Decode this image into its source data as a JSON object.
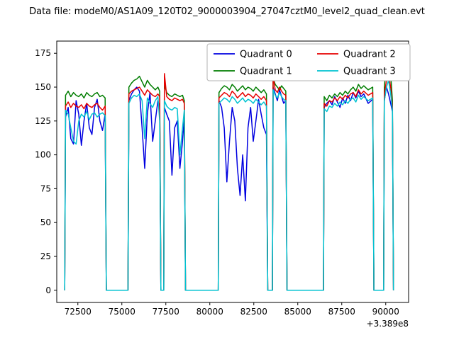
{
  "chart_data": {
    "type": "line",
    "title": "Data file: modeM0/AS1A09_120T02_9000003904_27047cztM0_level2_quad_clean.evt",
    "x_offset_label": "+3.389e8",
    "xlabel": "",
    "ylabel": "",
    "grid": false,
    "xlim": [
      71300,
      91300
    ],
    "ylim": [
      -9,
      184
    ],
    "xticks": [
      72500,
      75000,
      77500,
      80000,
      82500,
      85000,
      87500,
      90000
    ],
    "yticks": [
      0,
      25,
      50,
      75,
      100,
      125,
      150,
      175
    ],
    "legend": {
      "ncols": 2,
      "location": "upper center"
    },
    "x": [
      71750,
      71800,
      71950,
      72100,
      72250,
      72400,
      72550,
      72700,
      72850,
      73000,
      73150,
      73300,
      73450,
      73600,
      73750,
      73900,
      74050,
      74120,
      75350,
      75400,
      75550,
      75700,
      75850,
      76000,
      76150,
      76300,
      76450,
      76600,
      76750,
      76900,
      77050,
      77150,
      77220,
      77380,
      77420,
      77550,
      77700,
      77850,
      78000,
      78150,
      78300,
      78450,
      78550,
      78620,
      80480,
      80520,
      80670,
      80820,
      80970,
      81120,
      81270,
      81420,
      81570,
      81720,
      81870,
      82020,
      82170,
      82320,
      82470,
      82620,
      82770,
      82920,
      83070,
      83220,
      83290,
      83560,
      83600,
      83720,
      83840,
      83960,
      84080,
      84200,
      84320,
      84390,
      86460,
      86500,
      86650,
      86800,
      86950,
      87100,
      87250,
      87400,
      87550,
      87700,
      87850,
      88000,
      88150,
      88300,
      88450,
      88600,
      88750,
      89000,
      89260,
      89330,
      89880,
      89920,
      90040,
      90160,
      90280,
      90380,
      90440
    ],
    "series": [
      {
        "name": "Quadrant 0",
        "color": "#0000e0",
        "values": [
          0,
          128,
          135,
          112,
          108,
          140,
          130,
          107,
          125,
          138,
          120,
          115,
          135,
          141,
          125,
          118,
          130,
          0,
          0,
          140,
          145,
          148,
          150,
          147,
          120,
          90,
          130,
          146,
          110,
          125,
          140,
          135,
          0,
          0,
          135,
          130,
          125,
          85,
          120,
          125,
          90,
          110,
          128,
          0,
          0,
          140,
          135,
          120,
          80,
          110,
          135,
          125,
          90,
          70,
          100,
          66,
          120,
          135,
          110,
          125,
          141,
          130,
          120,
          115,
          0,
          0,
          150,
          145,
          140,
          148,
          143,
          138,
          140,
          0,
          0,
          135,
          138,
          140,
          137,
          143,
          139,
          135,
          142,
          138,
          144,
          140,
          146,
          142,
          147,
          143,
          145,
          138,
          141,
          0,
          0,
          140,
          150,
          145,
          138,
          132,
          0
        ]
      },
      {
        "name": "Quadrant 1",
        "color": "#007d00",
        "values": [
          0,
          144,
          147,
          143,
          146,
          144,
          143,
          145,
          142,
          146,
          144,
          143,
          145,
          146,
          143,
          144,
          142,
          0,
          0,
          150,
          153,
          155,
          156,
          158,
          154,
          150,
          155,
          152,
          150,
          148,
          150,
          147,
          0,
          0,
          152,
          146,
          144,
          143,
          145,
          144,
          143,
          144,
          140,
          0,
          0,
          146,
          149,
          151,
          150,
          148,
          152,
          150,
          147,
          149,
          151,
          148,
          150,
          149,
          147,
          150,
          148,
          146,
          148,
          145,
          0,
          0,
          157,
          152,
          150,
          148,
          151,
          149,
          147,
          0,
          0,
          143,
          140,
          144,
          142,
          145,
          143,
          146,
          144,
          147,
          145,
          148,
          150,
          147,
          152,
          149,
          151,
          148,
          150,
          0,
          0,
          150,
          168,
          175,
          160,
          140,
          0
        ]
      },
      {
        "name": "Quadrant 2",
        "color": "#e60000",
        "values": [
          0,
          136,
          139,
          135,
          138,
          136,
          135,
          137,
          134,
          138,
          136,
          135,
          137,
          138,
          135,
          133,
          136,
          0,
          0,
          145,
          147,
          148,
          149,
          150,
          147,
          144,
          148,
          146,
          144,
          143,
          145,
          143,
          0,
          0,
          160,
          143,
          141,
          140,
          142,
          141,
          140,
          141,
          138,
          0,
          0,
          142,
          144,
          146,
          145,
          143,
          147,
          145,
          142,
          144,
          146,
          143,
          145,
          144,
          142,
          145,
          143,
          141,
          143,
          140,
          0,
          0,
          158,
          148,
          146,
          150,
          147,
          145,
          144,
          0,
          0,
          138,
          136,
          140,
          139,
          142,
          140,
          143,
          141,
          144,
          142,
          145,
          146,
          143,
          148,
          145,
          147,
          144,
          146,
          0,
          0,
          145,
          155,
          160,
          150,
          135,
          0
        ]
      },
      {
        "name": "Quadrant 3",
        "color": "#00c2d1",
        "values": [
          0,
          133,
          130,
          120,
          110,
          108,
          125,
          130,
          128,
          132,
          126,
          130,
          131,
          128,
          130,
          131,
          129,
          0,
          0,
          138,
          142,
          144,
          143,
          145,
          140,
          112,
          142,
          138,
          135,
          140,
          143,
          125,
          0,
          0,
          140,
          136,
          134,
          133,
          135,
          134,
          100,
          120,
          133,
          0,
          0,
          138,
          140,
          142,
          141,
          139,
          143,
          141,
          138,
          140,
          142,
          139,
          141,
          140,
          138,
          141,
          139,
          137,
          139,
          136,
          0,
          0,
          148,
          144,
          142,
          146,
          143,
          141,
          140,
          0,
          0,
          134,
          132,
          136,
          135,
          138,
          136,
          139,
          137,
          140,
          138,
          141,
          142,
          139,
          144,
          141,
          143,
          140,
          142,
          0,
          0,
          140,
          150,
          155,
          145,
          133,
          0
        ]
      }
    ]
  }
}
